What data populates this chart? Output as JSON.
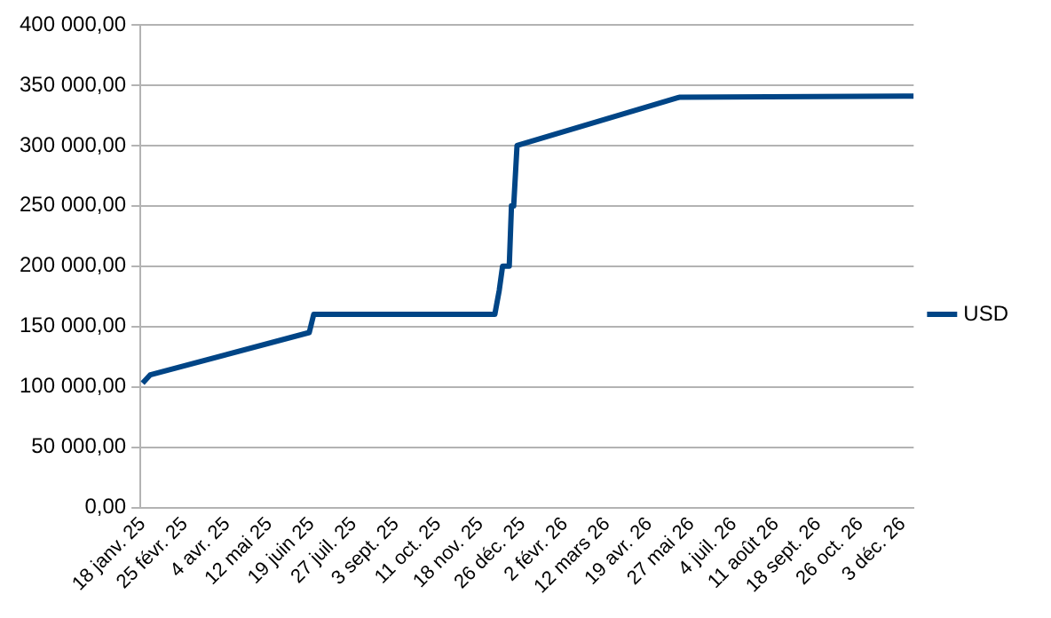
{
  "chart_data": {
    "type": "line",
    "x": [
      "2025-01-18",
      "2025-01-25",
      "2025-06-17",
      "2025-06-21",
      "2025-12-01",
      "2025-12-05",
      "2025-12-08",
      "2025-12-14",
      "2025-12-16",
      "2025-12-18",
      "2025-12-21",
      "2026-05-16",
      "2026-12-13"
    ],
    "series": [
      {
        "name": "USD",
        "color": "#004586",
        "values": [
          103000,
          110000,
          145000,
          160000,
          160000,
          180000,
          200000,
          200000,
          250000,
          250000,
          300000,
          340000,
          341000
        ]
      }
    ],
    "xlim": [
      "2025-01-16",
      "2026-12-13"
    ],
    "xticks": [
      {
        "value": "2025-01-18",
        "label": "18 janv. 25"
      },
      {
        "value": "2025-02-25",
        "label": "25 févr. 25"
      },
      {
        "value": "2025-04-04",
        "label": "4 avr. 25"
      },
      {
        "value": "2025-05-12",
        "label": "12 mai 25"
      },
      {
        "value": "2025-06-19",
        "label": "19 juin 25"
      },
      {
        "value": "2025-07-27",
        "label": "27 juil. 25"
      },
      {
        "value": "2025-09-03",
        "label": "3 sept. 25"
      },
      {
        "value": "2025-10-11",
        "label": "11 oct. 25"
      },
      {
        "value": "2025-11-18",
        "label": "18 nov. 25"
      },
      {
        "value": "2025-12-26",
        "label": "26 déc. 25"
      },
      {
        "value": "2026-02-02",
        "label": "2 févr. 26"
      },
      {
        "value": "2026-03-12",
        "label": "12 mars 26"
      },
      {
        "value": "2026-04-19",
        "label": "19 avr. 26"
      },
      {
        "value": "2026-05-27",
        "label": "27 mai 26"
      },
      {
        "value": "2026-07-04",
        "label": "4 juil. 26"
      },
      {
        "value": "2026-08-11",
        "label": "11 août 26"
      },
      {
        "value": "2026-09-18",
        "label": "18 sept. 26"
      },
      {
        "value": "2026-10-26",
        "label": "26 oct. 26"
      },
      {
        "value": "2026-12-03",
        "label": "3 déc. 26"
      }
    ],
    "ylim": [
      0,
      400000
    ],
    "yticks": [
      {
        "value": 0,
        "label": "0,00"
      },
      {
        "value": 50000,
        "label": "50 000,00"
      },
      {
        "value": 100000,
        "label": "100 000,00"
      },
      {
        "value": 150000,
        "label": "150 000,00"
      },
      {
        "value": 200000,
        "label": "200 000,00"
      },
      {
        "value": 250000,
        "label": "250 000,00"
      },
      {
        "value": 300000,
        "label": "300 000,00"
      },
      {
        "value": 350000,
        "label": "350 000,00"
      },
      {
        "value": 400000,
        "label": "400 000,00"
      }
    ],
    "grid": "y",
    "legend": "right",
    "marker": "none",
    "line_style": "solid"
  }
}
